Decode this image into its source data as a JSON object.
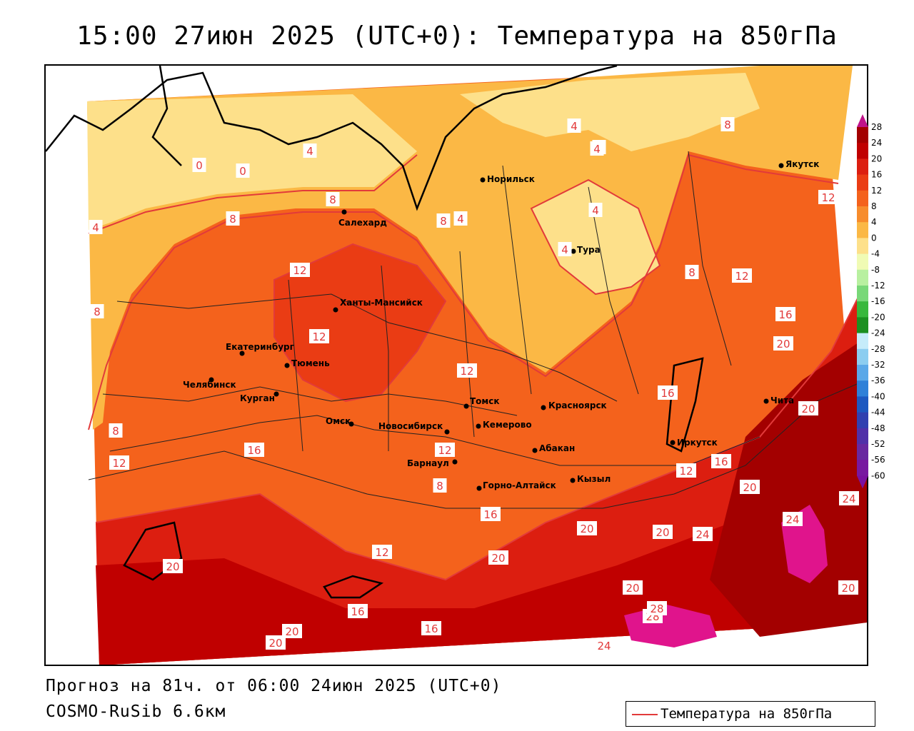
{
  "title": "15:00 27июн 2025 (UTC+0): Температура на 850гПа",
  "forecast_line": "Прогноз на 81ч. от 06:00 24июн 2025 (UTC+0)",
  "model_line": "COSMO-RuSib 6.6км",
  "series_legend_label": "Температура на 850гПа",
  "colors": {
    "isoline": "#e23a3a",
    "coast": "#000000",
    "border": "#222222"
  },
  "colorbar": {
    "ticks": [
      "28",
      "24",
      "20",
      "16",
      "12",
      "8",
      "4",
      "0",
      "-4",
      "-8",
      "-12",
      "-16",
      "-20",
      "-24",
      "-28",
      "-32",
      "-36",
      "-40",
      "-44",
      "-48",
      "-52",
      "-56",
      "-60"
    ],
    "colors": [
      "#a30000",
      "#c00000",
      "#dc1e10",
      "#ea3c14",
      "#f4621c",
      "#f78c2c",
      "#fbb845",
      "#fde08a",
      "#f0fbb4",
      "#b8f0a0",
      "#78d878",
      "#38b83c",
      "#1c9020",
      "#c6ecfa",
      "#8ccdf0",
      "#5aa8e8",
      "#2e80d8",
      "#1c58c0",
      "#3040b0",
      "#5030a8",
      "#6828a0",
      "#7818a0"
    ],
    "top_color": "#c0138a",
    "bottom_color": "#7a10a0"
  },
  "cities": [
    {
      "name": "Норильск"
    },
    {
      "name": "Якутск"
    },
    {
      "name": "Салехард"
    },
    {
      "name": "Тура"
    },
    {
      "name": "Ханты-Мансийск"
    },
    {
      "name": "Екатеринбург"
    },
    {
      "name": "Тюмень"
    },
    {
      "name": "Челябинск"
    },
    {
      "name": "Курган"
    },
    {
      "name": "Омск"
    },
    {
      "name": "Новосибирск"
    },
    {
      "name": "Томск"
    },
    {
      "name": "Кемерово"
    },
    {
      "name": "Красноярск"
    },
    {
      "name": "Барнаул"
    },
    {
      "name": "Абакан"
    },
    {
      "name": "Горно-Алтайск"
    },
    {
      "name": "Кызыл"
    },
    {
      "name": "Иркутск"
    },
    {
      "name": "Чита"
    }
  ],
  "isotherm_labels": [
    "0",
    "4",
    "0",
    "4",
    "4",
    "8",
    "8",
    "8",
    "4",
    "4",
    "4",
    "8",
    "8",
    "12",
    "12",
    "12",
    "12",
    "12",
    "12",
    "16",
    "16",
    "20",
    "20",
    "24",
    "28",
    "20",
    "24",
    "16",
    "20",
    "16",
    "20",
    "20",
    "24",
    "28",
    "16",
    "20",
    "20",
    "20",
    "24",
    "12",
    "8",
    "8",
    "8",
    "16",
    "4",
    "4",
    "12",
    "12",
    "20",
    "20",
    "16"
  ]
}
